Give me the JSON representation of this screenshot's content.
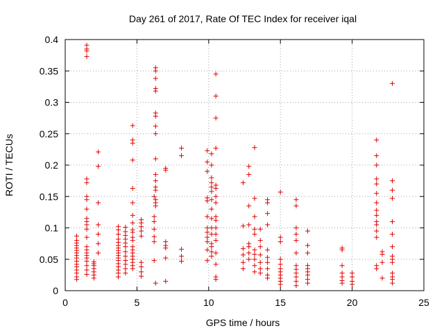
{
  "chart_data": {
    "type": "scatter",
    "title": "Day 261 of 2017, Rate Of TEC Index for receiver iqal",
    "xlabel": "GPS time / hours",
    "ylabel": "ROTI / TECUs",
    "xlim": [
      0,
      25
    ],
    "ylim": [
      0,
      0.4
    ],
    "xticks": [
      0,
      5,
      10,
      15,
      20,
      25
    ],
    "yticks": [
      0,
      0.05,
      0.1,
      0.15,
      0.2,
      0.25,
      0.3,
      0.35,
      0.4
    ],
    "ytick_labels": [
      "0",
      "0.05",
      "0.1",
      "0.15",
      "0.2",
      "0.25",
      "0.3",
      "0.35",
      "0.4"
    ],
    "grid": true,
    "marker": "+",
    "color": "#e00000",
    "series": [
      {
        "x": [
          0.8,
          0.8,
          0.8,
          0.8,
          0.8,
          0.8,
          0.8,
          0.8,
          0.8,
          0.8,
          0.8,
          0.8,
          0.8,
          0.8,
          0.8,
          0.8,
          1.5,
          1.5,
          1.5,
          1.5,
          1.5,
          1.5,
          1.5,
          1.5,
          1.5,
          1.5,
          1.5,
          1.5,
          1.5,
          1.5,
          1.5,
          1.5,
          1.5,
          1.5,
          1.5,
          1.5,
          1.5,
          1.5,
          1.5,
          2.0,
          2.0,
          2.0,
          2.0,
          2.0,
          2.0,
          2.0,
          2.3,
          2.3,
          2.3,
          2.3,
          2.3,
          2.3,
          2.3,
          3.7,
          3.7,
          3.7,
          3.7,
          3.7,
          3.7,
          3.7,
          3.7,
          3.7,
          3.7,
          3.7,
          3.7,
          3.7,
          3.7,
          3.7,
          3.7,
          3.7,
          4.2,
          4.2,
          4.2,
          4.2,
          4.2,
          4.2,
          4.2,
          4.2,
          4.2,
          4.2,
          4.2,
          4.2,
          4.7,
          4.7,
          4.7,
          4.7,
          4.7,
          4.7,
          4.7,
          4.7,
          4.7,
          4.7,
          4.7,
          4.7,
          4.7,
          4.7,
          4.7,
          4.7,
          4.7,
          4.7,
          4.7,
          4.7,
          5.3,
          5.3,
          5.3,
          5.3,
          5.3,
          5.3,
          5.3,
          5.3,
          5.3,
          6.2,
          6.2,
          6.2,
          6.2,
          6.2,
          6.2,
          6.2,
          6.3,
          6.3,
          6.3,
          6.3,
          6.3,
          6.3,
          6.3,
          6.3,
          6.3,
          6.3,
          6.3,
          6.3,
          6.3,
          6.3,
          6.3,
          6.3,
          6.3,
          6.3,
          7.0,
          7.0,
          7.0,
          7.0,
          7.0,
          7.0,
          7.0,
          8.1,
          8.1,
          8.1,
          8.1,
          8.1,
          9.9,
          9.9,
          9.9,
          9.9,
          9.9,
          9.9,
          9.9,
          9.9,
          9.9,
          9.9,
          9.9,
          9.9,
          10.2,
          10.2,
          10.2,
          10.2,
          10.2,
          10.2,
          10.2,
          10.2,
          10.2,
          10.2,
          10.2,
          10.2,
          10.2,
          10.2,
          10.2,
          10.5,
          10.5,
          10.5,
          10.5,
          10.5,
          10.5,
          10.5,
          10.5,
          10.5,
          10.5,
          10.5,
          10.5,
          10.5,
          10.5,
          10.5,
          10.5,
          10.5,
          12.4,
          12.4,
          12.4,
          12.4,
          12.4,
          12.4,
          12.8,
          12.8,
          12.8,
          12.8,
          12.8,
          12.8,
          12.8,
          12.8,
          13.2,
          13.2,
          13.2,
          13.2,
          13.2,
          13.2,
          13.2,
          13.2,
          13.2,
          13.2,
          13.6,
          13.6,
          13.6,
          13.6,
          13.6,
          13.6,
          13.6,
          14.1,
          14.1,
          14.1,
          14.1,
          14.1,
          14.1,
          14.1,
          14.1,
          14.1,
          14.1,
          15.0,
          15.0,
          15.0,
          15.0,
          15.0,
          15.0,
          15.0,
          15.0,
          15.0,
          15.0,
          15.0,
          16.1,
          16.1,
          16.1,
          16.1,
          16.1,
          16.1,
          16.1,
          16.1,
          16.1,
          16.1,
          16.1,
          16.1,
          16.9,
          16.9,
          16.9,
          16.9,
          16.9,
          16.9,
          16.9,
          16.9,
          16.9,
          19.3,
          19.3,
          19.3,
          19.3,
          19.3,
          19.3,
          19.3,
          20.0,
          20.0,
          20.0,
          20.0,
          21.7,
          21.7,
          21.7,
          21.7,
          21.7,
          21.7,
          21.7,
          21.7,
          21.7,
          21.7,
          21.7,
          21.7,
          21.7,
          21.7,
          21.7,
          22.1,
          22.1,
          22.1,
          22.1,
          22.8,
          22.8,
          22.8,
          22.8,
          22.8,
          22.8,
          22.8,
          22.8,
          22.8,
          22.8,
          22.8,
          22.8,
          22.8,
          22.8
        ],
        "y": [
          0.018,
          0.022,
          0.028,
          0.033,
          0.038,
          0.042,
          0.047,
          0.052,
          0.056,
          0.06,
          0.064,
          0.068,
          0.072,
          0.076,
          0.08,
          0.087,
          0.026,
          0.033,
          0.04,
          0.047,
          0.052,
          0.056,
          0.06,
          0.065,
          0.07,
          0.085,
          0.098,
          0.105,
          0.11,
          0.115,
          0.13,
          0.145,
          0.15,
          0.172,
          0.178,
          0.373,
          0.382,
          0.385,
          0.391,
          0.02,
          0.025,
          0.03,
          0.035,
          0.04,
          0.043,
          0.046,
          0.06,
          0.075,
          0.09,
          0.105,
          0.14,
          0.198,
          0.221,
          0.022,
          0.028,
          0.033,
          0.038,
          0.043,
          0.048,
          0.052,
          0.056,
          0.06,
          0.064,
          0.068,
          0.072,
          0.077,
          0.082,
          0.09,
          0.097,
          0.102,
          0.028,
          0.035,
          0.042,
          0.048,
          0.055,
          0.062,
          0.07,
          0.076,
          0.082,
          0.088,
          0.094,
          0.101,
          0.035,
          0.04,
          0.045,
          0.05,
          0.055,
          0.06,
          0.065,
          0.07,
          0.08,
          0.085,
          0.093,
          0.097,
          0.108,
          0.12,
          0.14,
          0.163,
          0.208,
          0.235,
          0.24,
          0.263,
          0.023,
          0.03,
          0.038,
          0.045,
          0.087,
          0.095,
          0.102,
          0.108,
          0.113,
          0.048,
          0.078,
          0.086,
          0.098,
          0.11,
          0.118,
          0.15,
          0.135,
          0.14,
          0.145,
          0.16,
          0.165,
          0.175,
          0.185,
          0.21,
          0.25,
          0.262,
          0.278,
          0.283,
          0.318,
          0.322,
          0.338,
          0.35,
          0.355,
          0.012,
          0.015,
          0.052,
          0.068,
          0.072,
          0.078,
          0.192,
          0.195,
          0.047,
          0.055,
          0.066,
          0.215,
          0.227,
          0.048,
          0.065,
          0.078,
          0.085,
          0.093,
          0.1,
          0.118,
          0.143,
          0.148,
          0.19,
          0.205,
          0.223,
          0.055,
          0.062,
          0.07,
          0.075,
          0.09,
          0.1,
          0.115,
          0.13,
          0.145,
          0.158,
          0.165,
          0.172,
          0.18,
          0.2,
          0.218,
          0.018,
          0.022,
          0.042,
          0.06,
          0.08,
          0.09,
          0.1,
          0.112,
          0.118,
          0.14,
          0.15,
          0.163,
          0.168,
          0.227,
          0.275,
          0.31,
          0.345,
          0.035,
          0.045,
          0.057,
          0.067,
          0.103,
          0.172,
          0.05,
          0.06,
          0.07,
          0.075,
          0.105,
          0.135,
          0.185,
          0.198,
          0.03,
          0.04,
          0.05,
          0.058,
          0.065,
          0.09,
          0.098,
          0.118,
          0.147,
          0.228,
          0.028,
          0.035,
          0.045,
          0.057,
          0.07,
          0.08,
          0.098,
          0.02,
          0.025,
          0.035,
          0.045,
          0.053,
          0.065,
          0.105,
          0.123,
          0.14,
          0.145,
          0.01,
          0.015,
          0.02,
          0.025,
          0.03,
          0.035,
          0.042,
          0.05,
          0.078,
          0.085,
          0.157,
          0.008,
          0.015,
          0.022,
          0.028,
          0.034,
          0.04,
          0.06,
          0.08,
          0.09,
          0.1,
          0.135,
          0.145,
          0.012,
          0.018,
          0.025,
          0.03,
          0.035,
          0.04,
          0.06,
          0.072,
          0.095,
          0.012,
          0.016,
          0.022,
          0.028,
          0.04,
          0.065,
          0.068,
          0.01,
          0.015,
          0.022,
          0.028,
          0.035,
          0.04,
          0.085,
          0.095,
          0.105,
          0.11,
          0.12,
          0.128,
          0.14,
          0.155,
          0.17,
          0.178,
          0.2,
          0.215,
          0.24,
          0.02,
          0.045,
          0.058,
          0.062,
          0.012,
          0.018,
          0.022,
          0.028,
          0.045,
          0.05,
          0.055,
          0.07,
          0.09,
          0.11,
          0.147,
          0.16,
          0.175,
          0.33
        ]
      }
    ]
  }
}
